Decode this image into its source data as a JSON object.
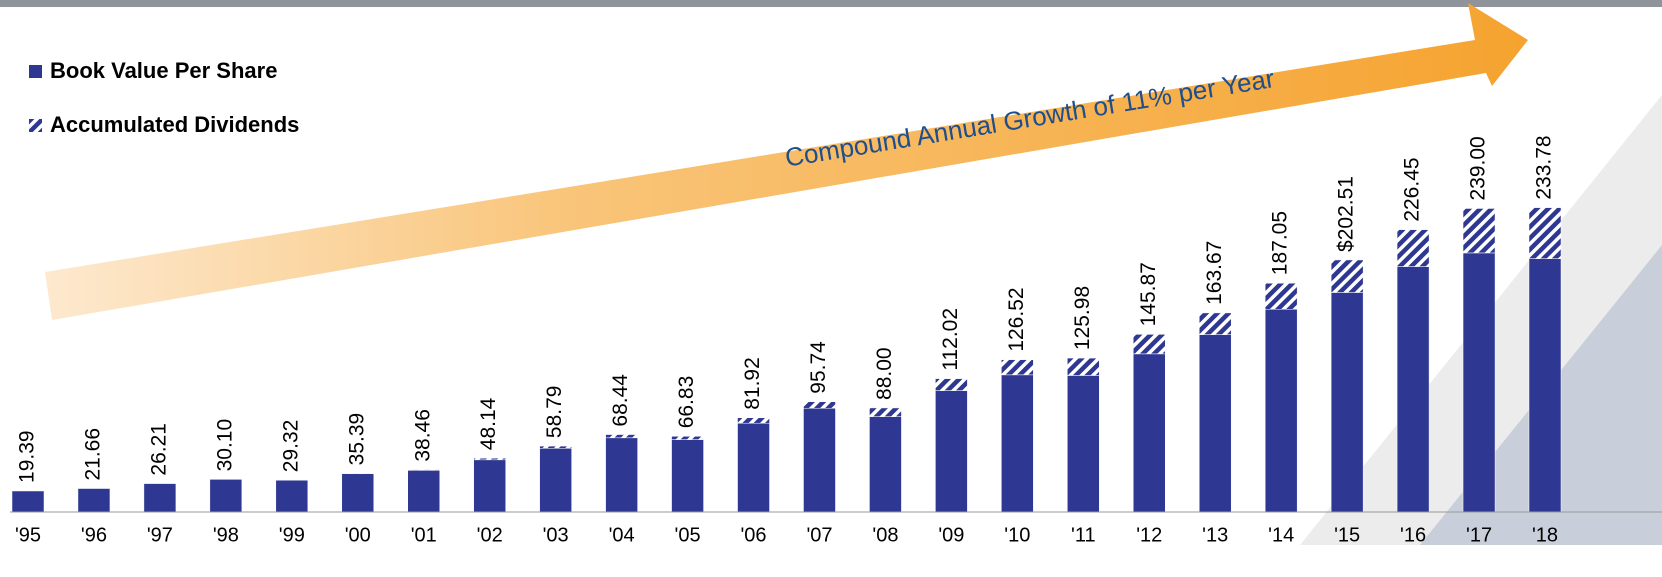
{
  "chart_data": {
    "type": "bar",
    "stacked": true,
    "annotation": "Compound Annual Growth of 11% per Year",
    "categories": [
      "'95",
      "'96",
      "'97",
      "'98",
      "'99",
      "'00",
      "'01",
      "'02",
      "'03",
      "'04",
      "'05",
      "'06",
      "'07",
      "'08",
      "'09",
      "'10",
      "'11",
      "'12",
      "'13",
      "'14",
      "'15",
      "'16",
      "'17",
      "'18"
    ],
    "series": [
      {
        "name": "Book Value Per Share",
        "color": "#2e3791",
        "values": [
          19.39,
          21.66,
          26.21,
          30.1,
          29.32,
          35.39,
          38.46,
          48.14,
          58.79,
          68.44,
          66.83,
          81.92,
          95.74,
          88.0,
          112.02,
          126.52,
          125.98,
          145.87,
          163.67,
          187.05,
          202.51,
          226.45,
          239.0,
          233.78
        ],
        "value_labels": [
          "19.39",
          "21.66",
          "26.21",
          "30.10",
          "29.32",
          "35.39",
          "38.46",
          "48.14",
          "58.79",
          "68.44",
          "66.83",
          "81.92",
          "95.74",
          "88.00",
          "112.02",
          "126.52",
          "125.98",
          "145.87",
          "163.67",
          "187.05",
          "$202.51",
          "226.45",
          "239.00",
          "233.78"
        ]
      },
      {
        "name": "Accumulated Dividends",
        "color": "#2e3791",
        "pattern": "hatch",
        "values": [
          0,
          0,
          0,
          0,
          0,
          0.3,
          0.6,
          1.5,
          2,
          3,
          3,
          5,
          6,
          8,
          11,
          14,
          16,
          18,
          20,
          24,
          30,
          34,
          41,
          47
        ]
      }
    ]
  }
}
